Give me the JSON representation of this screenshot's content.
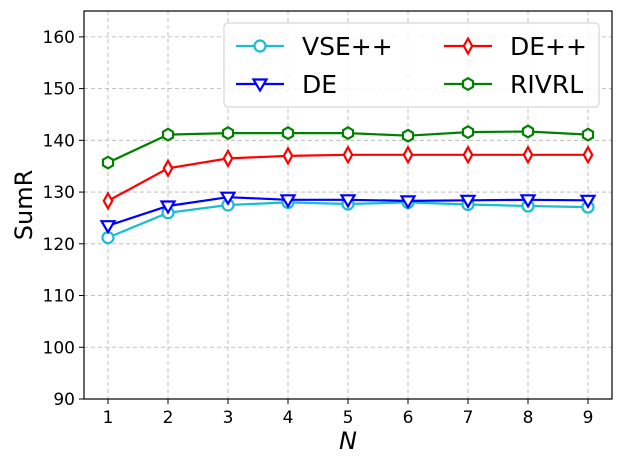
{
  "chart_data": {
    "type": "line",
    "xlabel": "N",
    "ylabel": "SumR",
    "x": [
      1,
      2,
      3,
      4,
      5,
      6,
      7,
      8,
      9
    ],
    "xlim": [
      0.6,
      9.4
    ],
    "ylim": [
      90,
      165
    ],
    "yticks": [
      90,
      100,
      110,
      120,
      130,
      140,
      150,
      160
    ],
    "grid": true,
    "legend_position": "top-right",
    "legend_columns": 2,
    "series": [
      {
        "name": "VSE++",
        "color": "#17becf",
        "marker": "circle",
        "values": [
          121.2,
          126.0,
          127.5,
          128.0,
          127.7,
          128.0,
          127.6,
          127.3,
          127.1
        ]
      },
      {
        "name": "DE",
        "color": "#0000ff",
        "marker": "triangle-down",
        "values": [
          123.5,
          127.3,
          129.0,
          128.5,
          128.5,
          128.3,
          128.4,
          128.5,
          128.4
        ]
      },
      {
        "name": "DE++",
        "color": "#ff0000",
        "marker": "thin-diamond",
        "values": [
          128.3,
          134.6,
          136.5,
          137.0,
          137.2,
          137.2,
          137.2,
          137.2,
          137.2
        ]
      },
      {
        "name": "RIVRL",
        "color": "#008000",
        "marker": "hexagon",
        "values": [
          135.7,
          141.1,
          141.4,
          141.4,
          141.4,
          140.9,
          141.6,
          141.7,
          141.1
        ]
      }
    ]
  }
}
